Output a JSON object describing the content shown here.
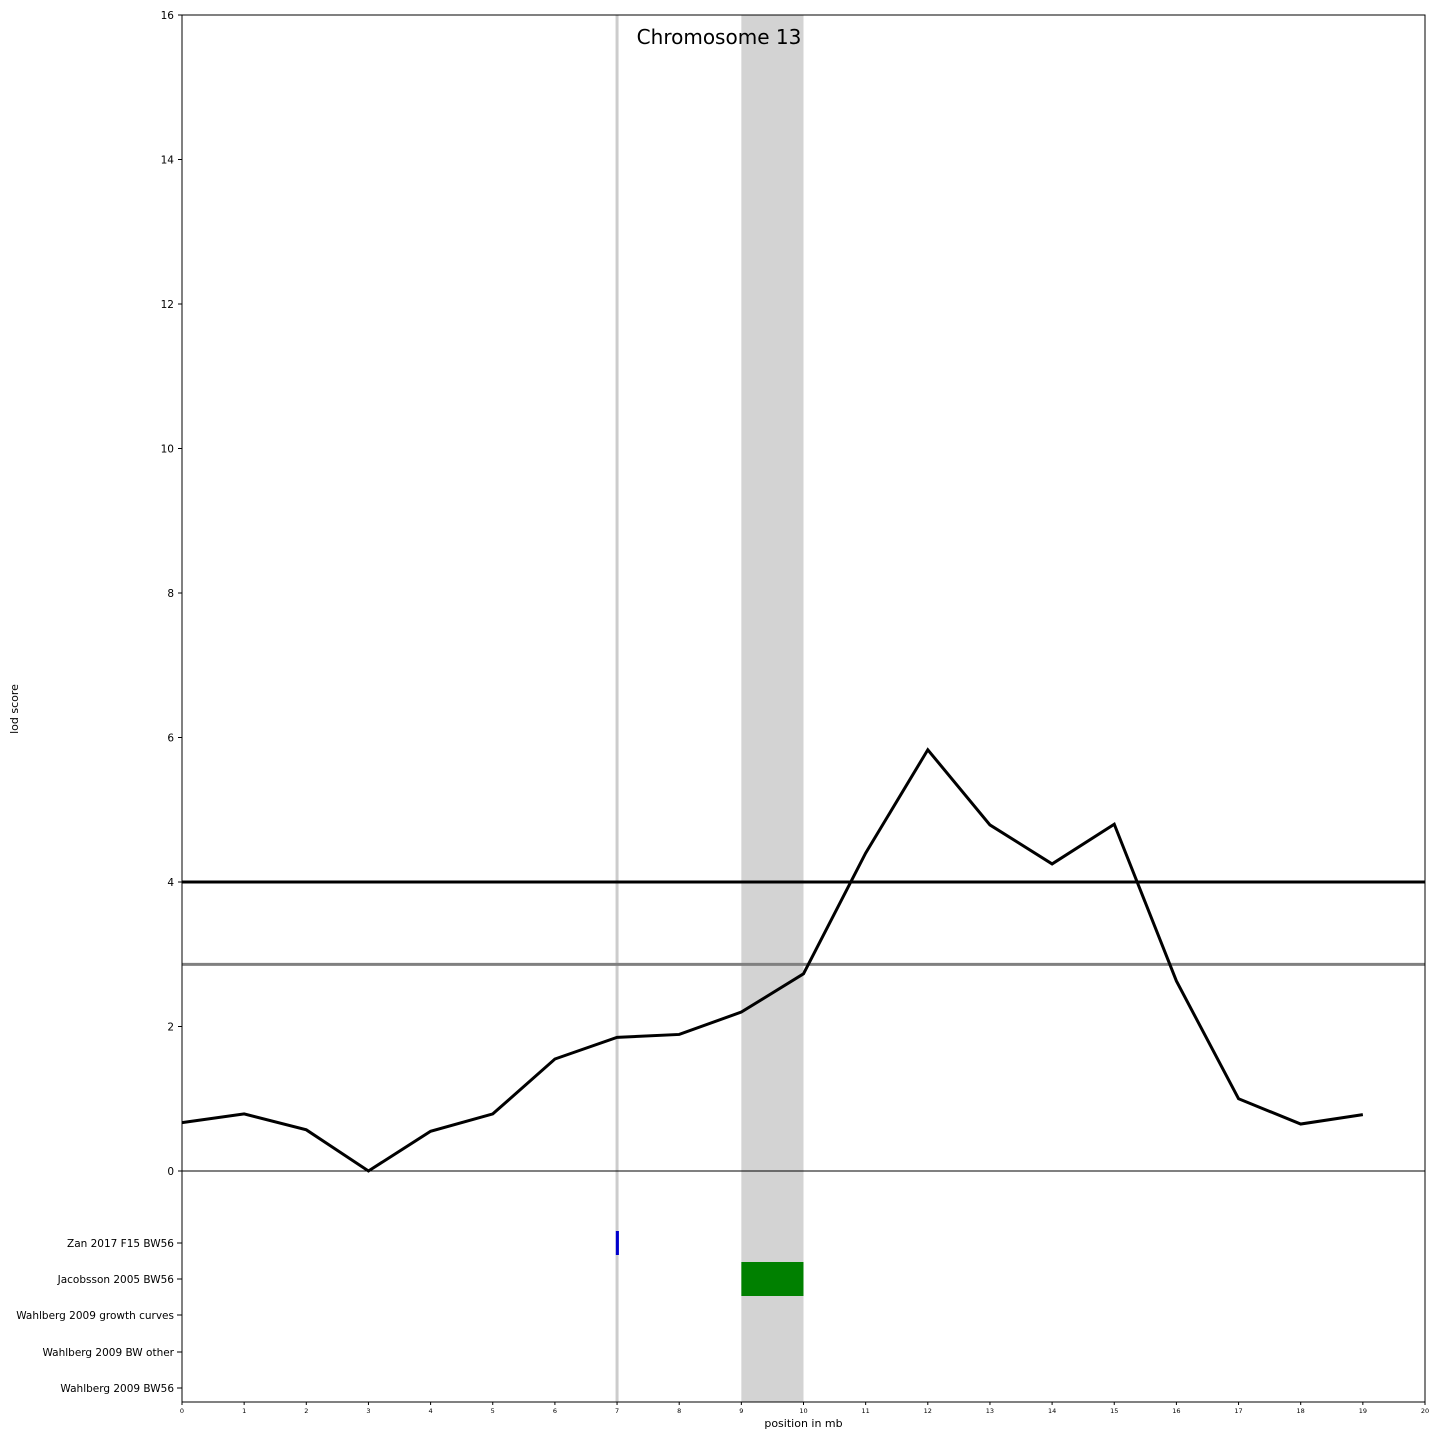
{
  "chart_data": {
    "type": "line",
    "title": "Chromosome 13",
    "xlabel": "position in mb",
    "ylabel": "lod score",
    "xlim": [
      0,
      20
    ],
    "ylim": [
      0,
      16
    ],
    "x_ticks": [
      0,
      1,
      2,
      3,
      4,
      5,
      6,
      7,
      8,
      9,
      10,
      11,
      12,
      13,
      14,
      15,
      16,
      17,
      18,
      19,
      20
    ],
    "y_ticks": [
      0,
      2,
      4,
      6,
      8,
      10,
      12,
      14,
      16
    ],
    "series": [
      {
        "x": [
          0,
          1,
          2,
          3,
          4,
          5,
          6,
          7,
          8,
          9,
          10,
          11,
          12,
          13,
          14,
          15,
          16,
          17,
          18,
          19
        ],
        "y": [
          0.67,
          0.79,
          0.57,
          0.0,
          0.55,
          0.79,
          1.55,
          1.85,
          1.89,
          2.2,
          2.73,
          4.4,
          5.83,
          4.79,
          4.25,
          4.8,
          2.63,
          1.0,
          0.65,
          0.78
        ],
        "color": "#000000"
      }
    ],
    "threshold_lines": [
      {
        "y": 4.0,
        "color": "#000000"
      },
      {
        "y": 2.86,
        "color": "#808080"
      }
    ],
    "shaded_region": {
      "x": [
        9,
        10
      ],
      "color": "#d3d3d3"
    },
    "marker_line": {
      "x": 7,
      "color": "#cccccc"
    },
    "tracks": [
      {
        "label": "Zan 2017 F15 BW56",
        "intervals": [
          [
            6.98,
            7.03
          ]
        ],
        "color": "#0000cc"
      },
      {
        "label": "Jacobsson 2005 BW56",
        "intervals": [
          [
            9,
            10
          ]
        ],
        "color": "#008000"
      },
      {
        "label": "Wahlberg 2009 growth curves",
        "intervals": [],
        "color": "#000000"
      },
      {
        "label": "Wahlberg 2009 BW other",
        "intervals": [],
        "color": "#000000"
      },
      {
        "label": "Wahlberg 2009 BW56",
        "intervals": [],
        "color": "#000000"
      }
    ]
  }
}
